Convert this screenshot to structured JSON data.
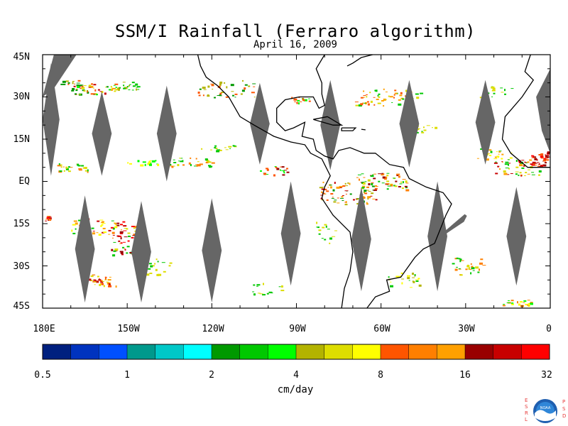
{
  "title": "SSM/I Rainfall (Ferraro algorithm)",
  "subtitle": "April 16, 2009",
  "map": {
    "projection": "equirectangular",
    "lon_range": [
      -180,
      0
    ],
    "lat_range": [
      -45,
      45
    ],
    "land_color": "#000000",
    "no_data_color": "#666666",
    "lat_labels": [
      "45N",
      "30N",
      "15N",
      "EQ",
      "15S",
      "30S",
      "45S"
    ],
    "lon_labels": [
      "180E",
      "150W",
      "120W",
      "90W",
      "60W",
      "30W",
      "0"
    ]
  },
  "colorbar": {
    "units": "cm/day",
    "tick_labels": [
      "0.5",
      "1",
      "2",
      "4",
      "8",
      "16",
      "32"
    ],
    "colors": [
      "#00207f",
      "#0033bf",
      "#0050ff",
      "#00998c",
      "#00c8c8",
      "#00ffff",
      "#009900",
      "#00c800",
      "#00ff00",
      "#b3b300",
      "#dddd00",
      "#ffff00",
      "#ff5500",
      "#ff7f00",
      "#ffa000",
      "#990000",
      "#c80000",
      "#ff0000"
    ]
  },
  "logo": {
    "left_letters": "ESRL",
    "right_letters": "PSD",
    "center_text": "NOAA"
  }
}
